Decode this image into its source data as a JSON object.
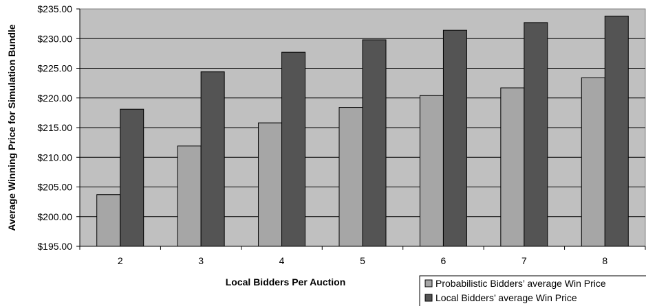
{
  "chart_data": {
    "type": "bar",
    "categories": [
      "2",
      "3",
      "4",
      "5",
      "6",
      "7",
      "8"
    ],
    "series": [
      {
        "name": "Probabilistic Bidders’ average Win Price",
        "values": [
          203.7,
          211.9,
          215.8,
          218.4,
          220.4,
          221.7,
          223.4
        ],
        "color": "#a6a6a6"
      },
      {
        "name": "Local Bidders’ average Win Price",
        "values": [
          218.1,
          224.4,
          227.7,
          229.8,
          231.4,
          232.7,
          233.8
        ],
        "color": "#545454"
      }
    ],
    "title": "",
    "xlabel": "Local Bidders Per Auction",
    "ylabel": "Average Winning Price for Simulation Bundle",
    "ylim": [
      195,
      235
    ],
    "yticks": [
      "$195.00",
      "$200.00",
      "$205.00",
      "$210.00",
      "$215.00",
      "$220.00",
      "$225.00",
      "$230.00",
      "$235.00"
    ],
    "grid": true,
    "plot_background": "#c0c0c0",
    "legend_position": "bottom-right"
  }
}
